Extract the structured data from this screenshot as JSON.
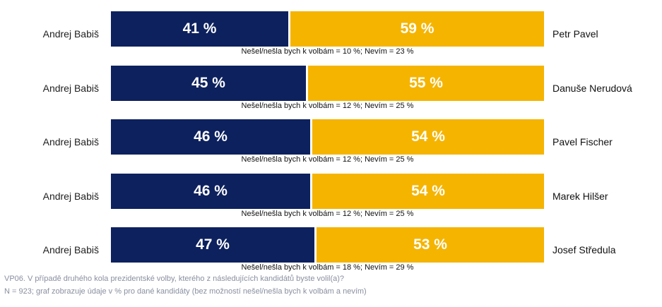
{
  "chart_data": {
    "type": "bar",
    "orientation": "horizontal-stacked-100",
    "left_candidate": "Andrej Babiš",
    "colors": {
      "left": "#0d215e",
      "right": "#f5b400"
    },
    "rows": [
      {
        "left_name": "Andrej Babiš",
        "left_value": 41,
        "left_label": "41 %",
        "right_name": "Petr Pavel",
        "right_value": 59,
        "right_label": "59 %",
        "note": "Nešel/nešla bych k volbám = 10 %; Nevím = 23 %"
      },
      {
        "left_name": "Andrej Babiš",
        "left_value": 45,
        "left_label": "45 %",
        "right_name": "Danuše Nerudová",
        "right_value": 55,
        "right_label": "55 %",
        "note": "Nešel/nešla bych k volbám = 12 %; Nevím = 25 %"
      },
      {
        "left_name": "Andrej Babiš",
        "left_value": 46,
        "left_label": "46 %",
        "right_name": "Pavel Fischer",
        "right_value": 54,
        "right_label": "54 %",
        "note": "Nešel/nešla bych k volbám = 12 %; Nevím = 25 %"
      },
      {
        "left_name": "Andrej Babiš",
        "left_value": 46,
        "left_label": "46 %",
        "right_name": "Marek Hilšer",
        "right_value": 54,
        "right_label": "54 %",
        "note": "Nešel/nešla bych k volbám = 12 %; Nevím = 25 %"
      },
      {
        "left_name": "Andrej Babiš",
        "left_value": 47,
        "left_label": "47 %",
        "right_name": "Josef Středula",
        "right_value": 53,
        "right_label": "53 %",
        "note": "Nešel/nešla bych k volbám = 18 %; Nevím = 29 %"
      }
    ]
  },
  "footer": {
    "question": "VP06. V případě druhého kola prezidentské volby, kterého z následujících kandidátů byste volil(a)?",
    "sample": "N = 923; graf zobrazuje údaje v % pro dané kandidáty (bez možností nešel/nešla bych k volbám a nevím)"
  }
}
